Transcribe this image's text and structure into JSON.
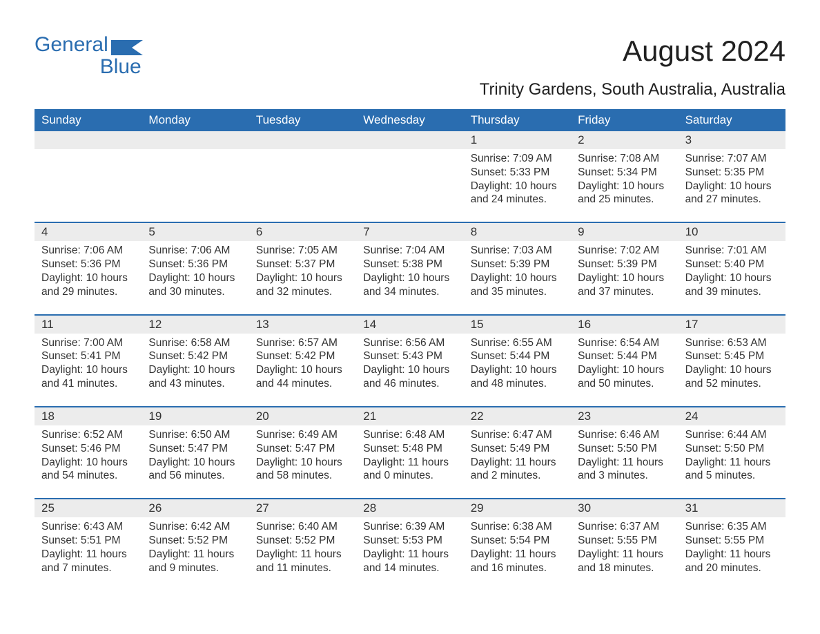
{
  "logo": {
    "word1": "General",
    "word2": "Blue",
    "flag_color": "#2a6db0"
  },
  "title": "August 2024",
  "location": "Trinity Gardens, South Australia, Australia",
  "colors": {
    "header_bg": "#2a6db0",
    "header_text": "#ffffff",
    "row_accent": "#2a6db0",
    "daynum_bg": "#ececec",
    "text": "#333333",
    "background": "#ffffff"
  },
  "typography": {
    "title_fontsize": 42,
    "location_fontsize": 24,
    "header_fontsize": 17,
    "daynum_fontsize": 17,
    "detail_fontsize": 15.5
  },
  "layout": {
    "columns": 7,
    "rows": 5
  },
  "day_names": [
    "Sunday",
    "Monday",
    "Tuesday",
    "Wednesday",
    "Thursday",
    "Friday",
    "Saturday"
  ],
  "labels": {
    "sunrise": "Sunrise:",
    "sunset": "Sunset:",
    "daylight": "Daylight:"
  },
  "weeks": [
    [
      null,
      null,
      null,
      null,
      {
        "n": "1",
        "sunrise": "7:09 AM",
        "sunset": "5:33 PM",
        "daylight": "10 hours and 24 minutes."
      },
      {
        "n": "2",
        "sunrise": "7:08 AM",
        "sunset": "5:34 PM",
        "daylight": "10 hours and 25 minutes."
      },
      {
        "n": "3",
        "sunrise": "7:07 AM",
        "sunset": "5:35 PM",
        "daylight": "10 hours and 27 minutes."
      }
    ],
    [
      {
        "n": "4",
        "sunrise": "7:06 AM",
        "sunset": "5:36 PM",
        "daylight": "10 hours and 29 minutes."
      },
      {
        "n": "5",
        "sunrise": "7:06 AM",
        "sunset": "5:36 PM",
        "daylight": "10 hours and 30 minutes."
      },
      {
        "n": "6",
        "sunrise": "7:05 AM",
        "sunset": "5:37 PM",
        "daylight": "10 hours and 32 minutes."
      },
      {
        "n": "7",
        "sunrise": "7:04 AM",
        "sunset": "5:38 PM",
        "daylight": "10 hours and 34 minutes."
      },
      {
        "n": "8",
        "sunrise": "7:03 AM",
        "sunset": "5:39 PM",
        "daylight": "10 hours and 35 minutes."
      },
      {
        "n": "9",
        "sunrise": "7:02 AM",
        "sunset": "5:39 PM",
        "daylight": "10 hours and 37 minutes."
      },
      {
        "n": "10",
        "sunrise": "7:01 AM",
        "sunset": "5:40 PM",
        "daylight": "10 hours and 39 minutes."
      }
    ],
    [
      {
        "n": "11",
        "sunrise": "7:00 AM",
        "sunset": "5:41 PM",
        "daylight": "10 hours and 41 minutes."
      },
      {
        "n": "12",
        "sunrise": "6:58 AM",
        "sunset": "5:42 PM",
        "daylight": "10 hours and 43 minutes."
      },
      {
        "n": "13",
        "sunrise": "6:57 AM",
        "sunset": "5:42 PM",
        "daylight": "10 hours and 44 minutes."
      },
      {
        "n": "14",
        "sunrise": "6:56 AM",
        "sunset": "5:43 PM",
        "daylight": "10 hours and 46 minutes."
      },
      {
        "n": "15",
        "sunrise": "6:55 AM",
        "sunset": "5:44 PM",
        "daylight": "10 hours and 48 minutes."
      },
      {
        "n": "16",
        "sunrise": "6:54 AM",
        "sunset": "5:44 PM",
        "daylight": "10 hours and 50 minutes."
      },
      {
        "n": "17",
        "sunrise": "6:53 AM",
        "sunset": "5:45 PM",
        "daylight": "10 hours and 52 minutes."
      }
    ],
    [
      {
        "n": "18",
        "sunrise": "6:52 AM",
        "sunset": "5:46 PM",
        "daylight": "10 hours and 54 minutes."
      },
      {
        "n": "19",
        "sunrise": "6:50 AM",
        "sunset": "5:47 PM",
        "daylight": "10 hours and 56 minutes."
      },
      {
        "n": "20",
        "sunrise": "6:49 AM",
        "sunset": "5:47 PM",
        "daylight": "10 hours and 58 minutes."
      },
      {
        "n": "21",
        "sunrise": "6:48 AM",
        "sunset": "5:48 PM",
        "daylight": "11 hours and 0 minutes."
      },
      {
        "n": "22",
        "sunrise": "6:47 AM",
        "sunset": "5:49 PM",
        "daylight": "11 hours and 2 minutes."
      },
      {
        "n": "23",
        "sunrise": "6:46 AM",
        "sunset": "5:50 PM",
        "daylight": "11 hours and 3 minutes."
      },
      {
        "n": "24",
        "sunrise": "6:44 AM",
        "sunset": "5:50 PM",
        "daylight": "11 hours and 5 minutes."
      }
    ],
    [
      {
        "n": "25",
        "sunrise": "6:43 AM",
        "sunset": "5:51 PM",
        "daylight": "11 hours and 7 minutes."
      },
      {
        "n": "26",
        "sunrise": "6:42 AM",
        "sunset": "5:52 PM",
        "daylight": "11 hours and 9 minutes."
      },
      {
        "n": "27",
        "sunrise": "6:40 AM",
        "sunset": "5:52 PM",
        "daylight": "11 hours and 11 minutes."
      },
      {
        "n": "28",
        "sunrise": "6:39 AM",
        "sunset": "5:53 PM",
        "daylight": "11 hours and 14 minutes."
      },
      {
        "n": "29",
        "sunrise": "6:38 AM",
        "sunset": "5:54 PM",
        "daylight": "11 hours and 16 minutes."
      },
      {
        "n": "30",
        "sunrise": "6:37 AM",
        "sunset": "5:55 PM",
        "daylight": "11 hours and 18 minutes."
      },
      {
        "n": "31",
        "sunrise": "6:35 AM",
        "sunset": "5:55 PM",
        "daylight": "11 hours and 20 minutes."
      }
    ]
  ]
}
